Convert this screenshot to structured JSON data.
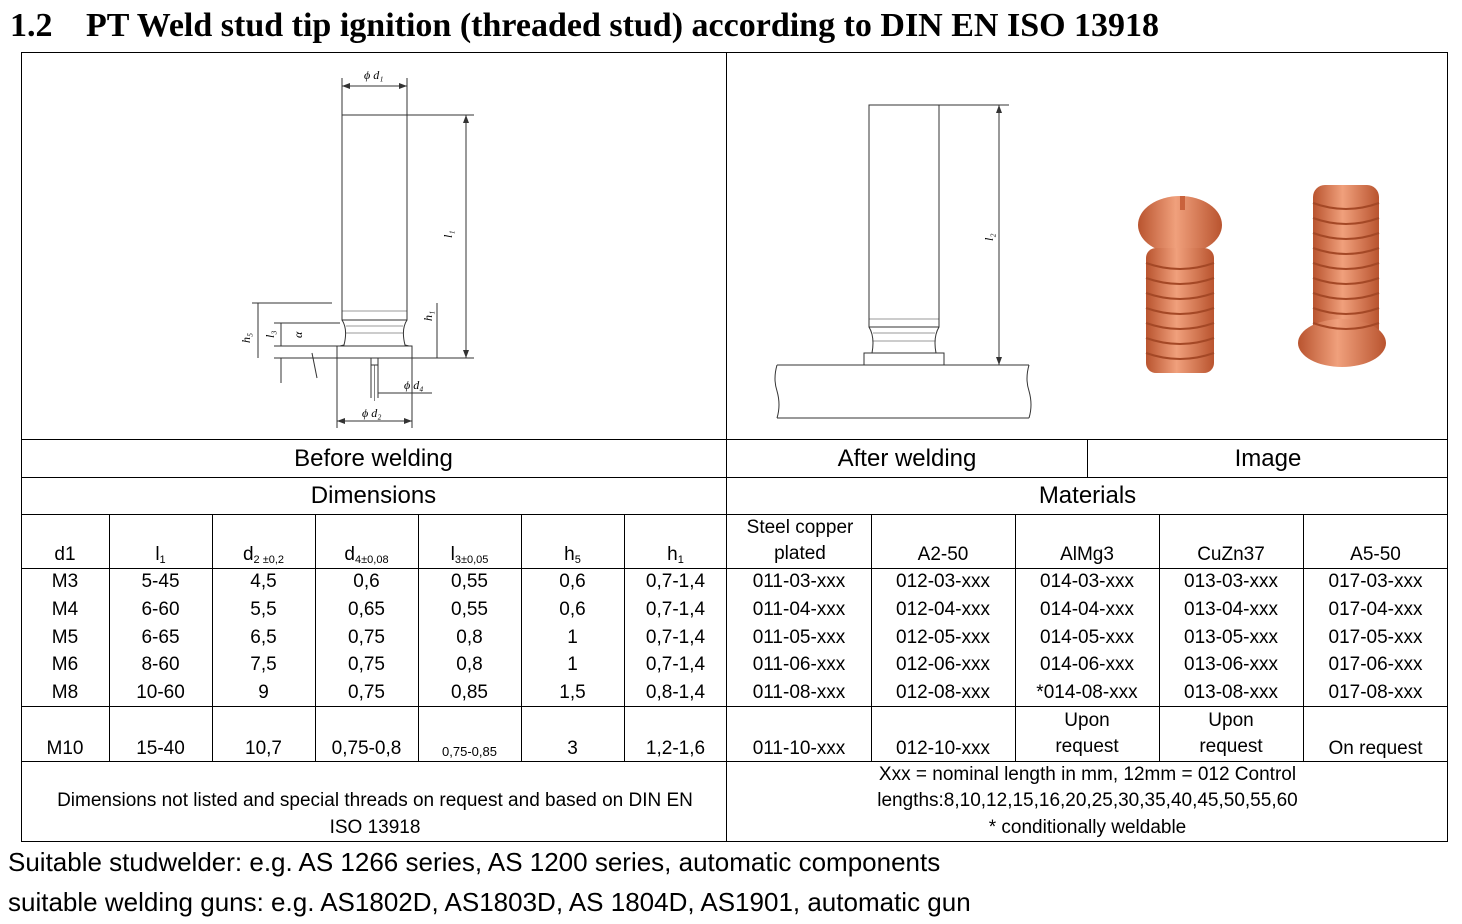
{
  "title": {
    "number": "1.2",
    "text": "PT Weld stud tip ignition (threaded stud) according to DIN EN ISO 13918"
  },
  "drawing_labels": {
    "d1": "ϕ d₁",
    "d2": "ϕ d₂",
    "d4": "ϕ d₄",
    "l1": "l₁",
    "l2": "l₂",
    "l3": "l₃",
    "h1": "h₁",
    "h5": "h₅",
    "alpha": "α"
  },
  "sections": {
    "before_welding": "Before welding",
    "after_welding": "After welding",
    "image": "Image",
    "dimensions": "Dimensions",
    "materials": "Materials"
  },
  "columns": {
    "d1": "d1",
    "l1": {
      "base": "l",
      "sub": "1"
    },
    "d2": {
      "base": "d",
      "sub": "2 ±0,2"
    },
    "d4": {
      "base": "d",
      "sub": "4±0,08"
    },
    "l3": {
      "base": "l",
      "sub": "3±0,05"
    },
    "h5": {
      "base": "h",
      "sub": "5"
    },
    "h1": {
      "base": "h",
      "sub": "1"
    },
    "steel": "Steel copper plated",
    "a2": "A2-50",
    "almg": "AlMg3",
    "cuzn": "CuZn37",
    "a5": "A5-50"
  },
  "rows": [
    {
      "d1": "M3",
      "l1": "5-45",
      "d2": "4,5",
      "d4": "0,6",
      "l3": "0,55",
      "h5": "0,6",
      "h1": "0,7-1,4",
      "steel": "011-03-xxx",
      "a2": "012-03-xxx",
      "almg": "014-03-xxx",
      "cuzn": "013-03-xxx",
      "a5": "017-03-xxx"
    },
    {
      "d1": "M4",
      "l1": "6-60",
      "d2": "5,5",
      "d4": "0,65",
      "l3": "0,55",
      "h5": "0,6",
      "h1": "0,7-1,4",
      "steel": "011-04-xxx",
      "a2": "012-04-xxx",
      "almg": "014-04-xxx",
      "cuzn": "013-04-xxx",
      "a5": "017-04-xxx"
    },
    {
      "d1": "M5",
      "l1": "6-65",
      "d2": "6,5",
      "d4": "0,75",
      "l3": "0,8",
      "h5": "1",
      "h1": "0,7-1,4",
      "steel": "011-05-xxx",
      "a2": "012-05-xxx",
      "almg": "014-05-xxx",
      "cuzn": "013-05-xxx",
      "a5": "017-05-xxx"
    },
    {
      "d1": "M6",
      "l1": "8-60",
      "d2": "7,5",
      "d4": "0,75",
      "l3": "0,8",
      "h5": "1",
      "h1": "0,7-1,4",
      "steel": "011-06-xxx",
      "a2": "012-06-xxx",
      "almg": "014-06-xxx",
      "cuzn": "013-06-xxx",
      "a5": "017-06-xxx"
    },
    {
      "d1": "M8",
      "l1": "10-60",
      "d2": "9",
      "d4": "0,75",
      "l3": "0,85",
      "h5": "1,5",
      "h1": "0,8-1,4",
      "steel": "011-08-xxx",
      "a2": "012-08-xxx",
      "almg": "*014-08-xxx",
      "cuzn": "013-08-xxx",
      "a5": "017-08-xxx"
    },
    {
      "d1": "M10",
      "l1": "15-40",
      "d2": "10,7",
      "d4": "0,75-0,8",
      "l3": "0,75-0,85",
      "h5": "3",
      "h1": "1,2-1,6",
      "steel": "011-10-xxx",
      "a2": "012-10-xxx",
      "almg": "Upon request",
      "cuzn": "Upon request",
      "a5": "On request"
    }
  ],
  "notes": {
    "left": "Dimensions not listed and special threads on request and based on DIN EN ISO 13918",
    "right_line1": "Xxx = nominal length in mm, 12mm = 012 Control",
    "right_line2": "lengths:8,10,12,15,16,20,25,30,35,40,45,50,55,60",
    "right_line3": "* conditionally weldable"
  },
  "footer": {
    "line1": "Suitable studwelder: e.g. AS 1266 series, AS 1200 series, automatic components",
    "line2": "suitable welding guns: e.g. AS1802D, AS1803D, AS 1804D, AS1901, automatic gun"
  },
  "colors": {
    "copper": "#d9724c",
    "copper_dark": "#b9542f",
    "copper_light": "#f0a07c"
  }
}
